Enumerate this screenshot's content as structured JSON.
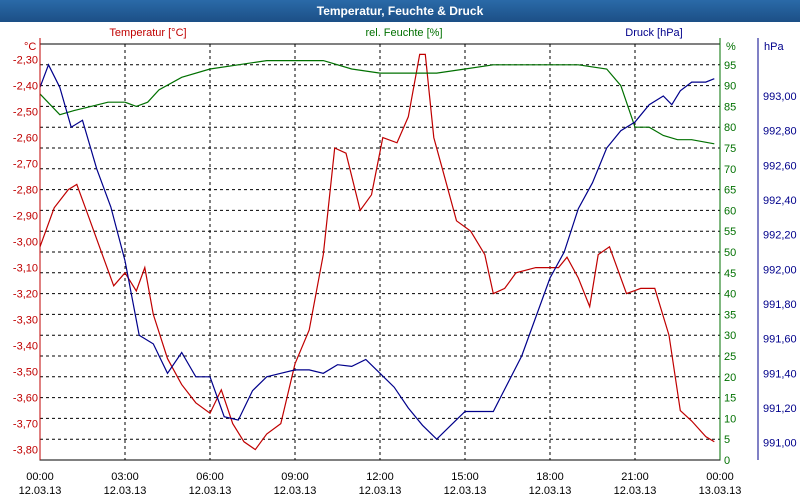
{
  "window": {
    "title": "Temperatur, Feuchte & Druck"
  },
  "chart_data": {
    "type": "line",
    "title": "Temperatur, Feuchte & Druck",
    "grid": true,
    "x_tick_labels": [
      [
        "00:00",
        "12.03.13"
      ],
      [
        "03:00",
        "12.03.13"
      ],
      [
        "06:00",
        "12.03.13"
      ],
      [
        "09:00",
        "12.03.13"
      ],
      [
        "12:00",
        "12.03.13"
      ],
      [
        "15:00",
        "12.03.13"
      ],
      [
        "18:00",
        "12.03.13"
      ],
      [
        "21:00",
        "12.03.13"
      ],
      [
        "00:00",
        "13.03.13"
      ]
    ],
    "axes": {
      "temperature": {
        "label": "Temperatur [°C]",
        "unit": "°C",
        "color": "#c00000",
        "range": [
          -3.84,
          -2.24
        ],
        "ticks": [
          "-2,30",
          "-2,40",
          "-2,50",
          "-2,60",
          "-2,70",
          "-2,80",
          "-2,90",
          "-3,00",
          "-3,10",
          "-3,20",
          "-3,30",
          "-3,40",
          "-3,50",
          "-3,60",
          "-3,70",
          "-3,80"
        ]
      },
      "humidity": {
        "label": "rel. Feuchte [%]",
        "unit": "%",
        "color": "#007000",
        "range": [
          0,
          100
        ],
        "ticks": [
          "95",
          "90",
          "85",
          "80",
          "75",
          "70",
          "65",
          "60",
          "55",
          "50",
          "45",
          "40",
          "35",
          "30",
          "25",
          "20",
          "15",
          "10",
          "5",
          "0"
        ]
      },
      "pressure": {
        "label": "Druck [hPa]",
        "unit": "hPa",
        "color": "#00008b",
        "range": [
          990.9,
          993.3
        ],
        "ticks": [
          "993,00",
          "992,80",
          "992,60",
          "992,40",
          "992,20",
          "992,00",
          "991,80",
          "991,60",
          "991,40",
          "991,20",
          "991,00"
        ]
      }
    },
    "series": [
      {
        "name": "Temperatur [°C]",
        "axis": "temperature",
        "color": "#c00000",
        "points": [
          [
            0,
            -3.02
          ],
          [
            0.5,
            -2.87
          ],
          [
            1,
            -2.8
          ],
          [
            1.3,
            -2.78
          ],
          [
            1.7,
            -2.9
          ],
          [
            2.2,
            -3.05
          ],
          [
            2.6,
            -3.17
          ],
          [
            3,
            -3.12
          ],
          [
            3.4,
            -3.19
          ],
          [
            3.7,
            -3.1
          ],
          [
            4,
            -3.28
          ],
          [
            4.5,
            -3.45
          ],
          [
            5,
            -3.55
          ],
          [
            5.5,
            -3.62
          ],
          [
            6,
            -3.66
          ],
          [
            6.4,
            -3.57
          ],
          [
            6.8,
            -3.7
          ],
          [
            7.2,
            -3.77
          ],
          [
            7.6,
            -3.8
          ],
          [
            8,
            -3.74
          ],
          [
            8.5,
            -3.7
          ],
          [
            9,
            -3.47
          ],
          [
            9.5,
            -3.34
          ],
          [
            10,
            -3.05
          ],
          [
            10.4,
            -2.64
          ],
          [
            10.8,
            -2.66
          ],
          [
            11.3,
            -2.88
          ],
          [
            11.7,
            -2.82
          ],
          [
            12.1,
            -2.6
          ],
          [
            12.6,
            -2.62
          ],
          [
            13,
            -2.52
          ],
          [
            13.4,
            -2.28
          ],
          [
            13.6,
            -2.28
          ],
          [
            13.9,
            -2.6
          ],
          [
            14.3,
            -2.76
          ],
          [
            14.7,
            -2.92
          ],
          [
            15.2,
            -2.96
          ],
          [
            15.7,
            -3.05
          ],
          [
            16,
            -3.2
          ],
          [
            16.4,
            -3.18
          ],
          [
            16.8,
            -3.12
          ],
          [
            17.5,
            -3.1
          ],
          [
            18.3,
            -3.1
          ],
          [
            18.6,
            -3.06
          ],
          [
            19,
            -3.14
          ],
          [
            19.4,
            -3.25
          ],
          [
            19.7,
            -3.05
          ],
          [
            20.1,
            -3.02
          ],
          [
            20.7,
            -3.2
          ],
          [
            21.2,
            -3.18
          ],
          [
            21.7,
            -3.18
          ],
          [
            22.2,
            -3.36
          ],
          [
            22.6,
            -3.65
          ],
          [
            23,
            -3.69
          ],
          [
            23.5,
            -3.75
          ],
          [
            23.8,
            -3.77
          ]
        ]
      },
      {
        "name": "rel. Feuchte [%]",
        "axis": "humidity",
        "color": "#007000",
        "points": [
          [
            0,
            88
          ],
          [
            0.7,
            83
          ],
          [
            1.2,
            84
          ],
          [
            1.8,
            85
          ],
          [
            2.4,
            86
          ],
          [
            3,
            86
          ],
          [
            3.4,
            85
          ],
          [
            3.8,
            86
          ],
          [
            4.2,
            89
          ],
          [
            5,
            92
          ],
          [
            6,
            94
          ],
          [
            7,
            95
          ],
          [
            8,
            96
          ],
          [
            9,
            96
          ],
          [
            10,
            96
          ],
          [
            11,
            94
          ],
          [
            12,
            93
          ],
          [
            13,
            93
          ],
          [
            14,
            93
          ],
          [
            15,
            94
          ],
          [
            16,
            95
          ],
          [
            17,
            95
          ],
          [
            18,
            95
          ],
          [
            19,
            95
          ],
          [
            20,
            94
          ],
          [
            20.5,
            90
          ],
          [
            21,
            80
          ],
          [
            21.5,
            80
          ],
          [
            22,
            78
          ],
          [
            22.5,
            77
          ],
          [
            23,
            77
          ],
          [
            23.8,
            76
          ]
        ]
      },
      {
        "name": "Druck [hPa]",
        "axis": "pressure",
        "color": "#00008b",
        "points": [
          [
            0,
            993.05
          ],
          [
            0.3,
            993.18
          ],
          [
            0.7,
            993.05
          ],
          [
            1.1,
            992.82
          ],
          [
            1.5,
            992.86
          ],
          [
            2,
            992.58
          ],
          [
            2.5,
            992.36
          ],
          [
            3,
            992.05
          ],
          [
            3.5,
            991.62
          ],
          [
            4,
            991.57
          ],
          [
            4.5,
            991.4
          ],
          [
            5,
            991.52
          ],
          [
            5.5,
            991.38
          ],
          [
            6,
            991.38
          ],
          [
            6.5,
            991.15
          ],
          [
            7,
            991.13
          ],
          [
            7.5,
            991.3
          ],
          [
            8,
            991.38
          ],
          [
            8.5,
            991.4
          ],
          [
            9,
            991.42
          ],
          [
            9.5,
            991.42
          ],
          [
            10,
            991.4
          ],
          [
            10.5,
            991.45
          ],
          [
            11,
            991.44
          ],
          [
            11.5,
            991.48
          ],
          [
            12,
            991.4
          ],
          [
            12.5,
            991.32
          ],
          [
            13,
            991.2
          ],
          [
            13.5,
            991.1
          ],
          [
            14,
            991.02
          ],
          [
            14.5,
            991.1
          ],
          [
            15,
            991.18
          ],
          [
            16,
            991.18
          ],
          [
            17,
            991.5
          ],
          [
            18,
            991.95
          ],
          [
            18.5,
            992.1
          ],
          [
            19,
            992.35
          ],
          [
            19.5,
            992.5
          ],
          [
            20,
            992.7
          ],
          [
            20.5,
            992.8
          ],
          [
            21,
            992.85
          ],
          [
            21.5,
            992.95
          ],
          [
            22,
            993.0
          ],
          [
            22.3,
            992.95
          ],
          [
            22.6,
            993.03
          ],
          [
            23,
            993.08
          ],
          [
            23.5,
            993.08
          ],
          [
            23.8,
            993.1
          ]
        ]
      }
    ]
  }
}
